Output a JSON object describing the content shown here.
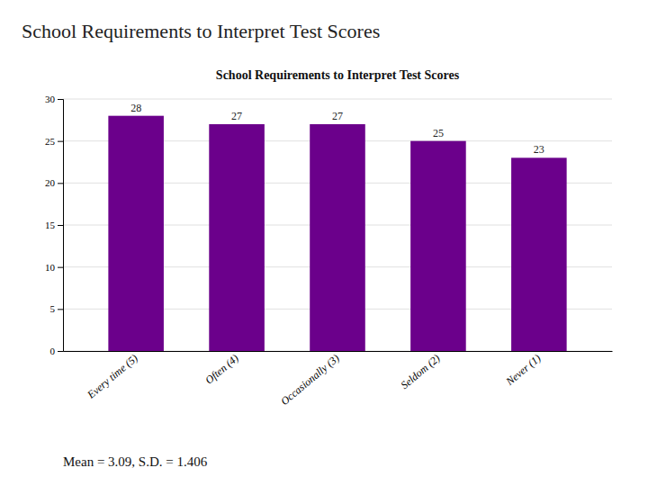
{
  "chart_data": {
    "type": "bar",
    "title": "School Requirements to Interpret Test Scores",
    "categories": [
      "Every time (5)",
      "Often (4)",
      "Occasionally (3)",
      "Seldom (2)",
      "Never (1)"
    ],
    "values": [
      28,
      27,
      27,
      25,
      23
    ],
    "color": "#6B008B",
    "ylim": [
      0,
      30
    ],
    "yticks": [
      0,
      5,
      10,
      15,
      20,
      25,
      30
    ],
    "grid": true,
    "data_labels": true,
    "annotations": [
      "Mean = 3.09, S.D. = 1.406"
    ]
  }
}
